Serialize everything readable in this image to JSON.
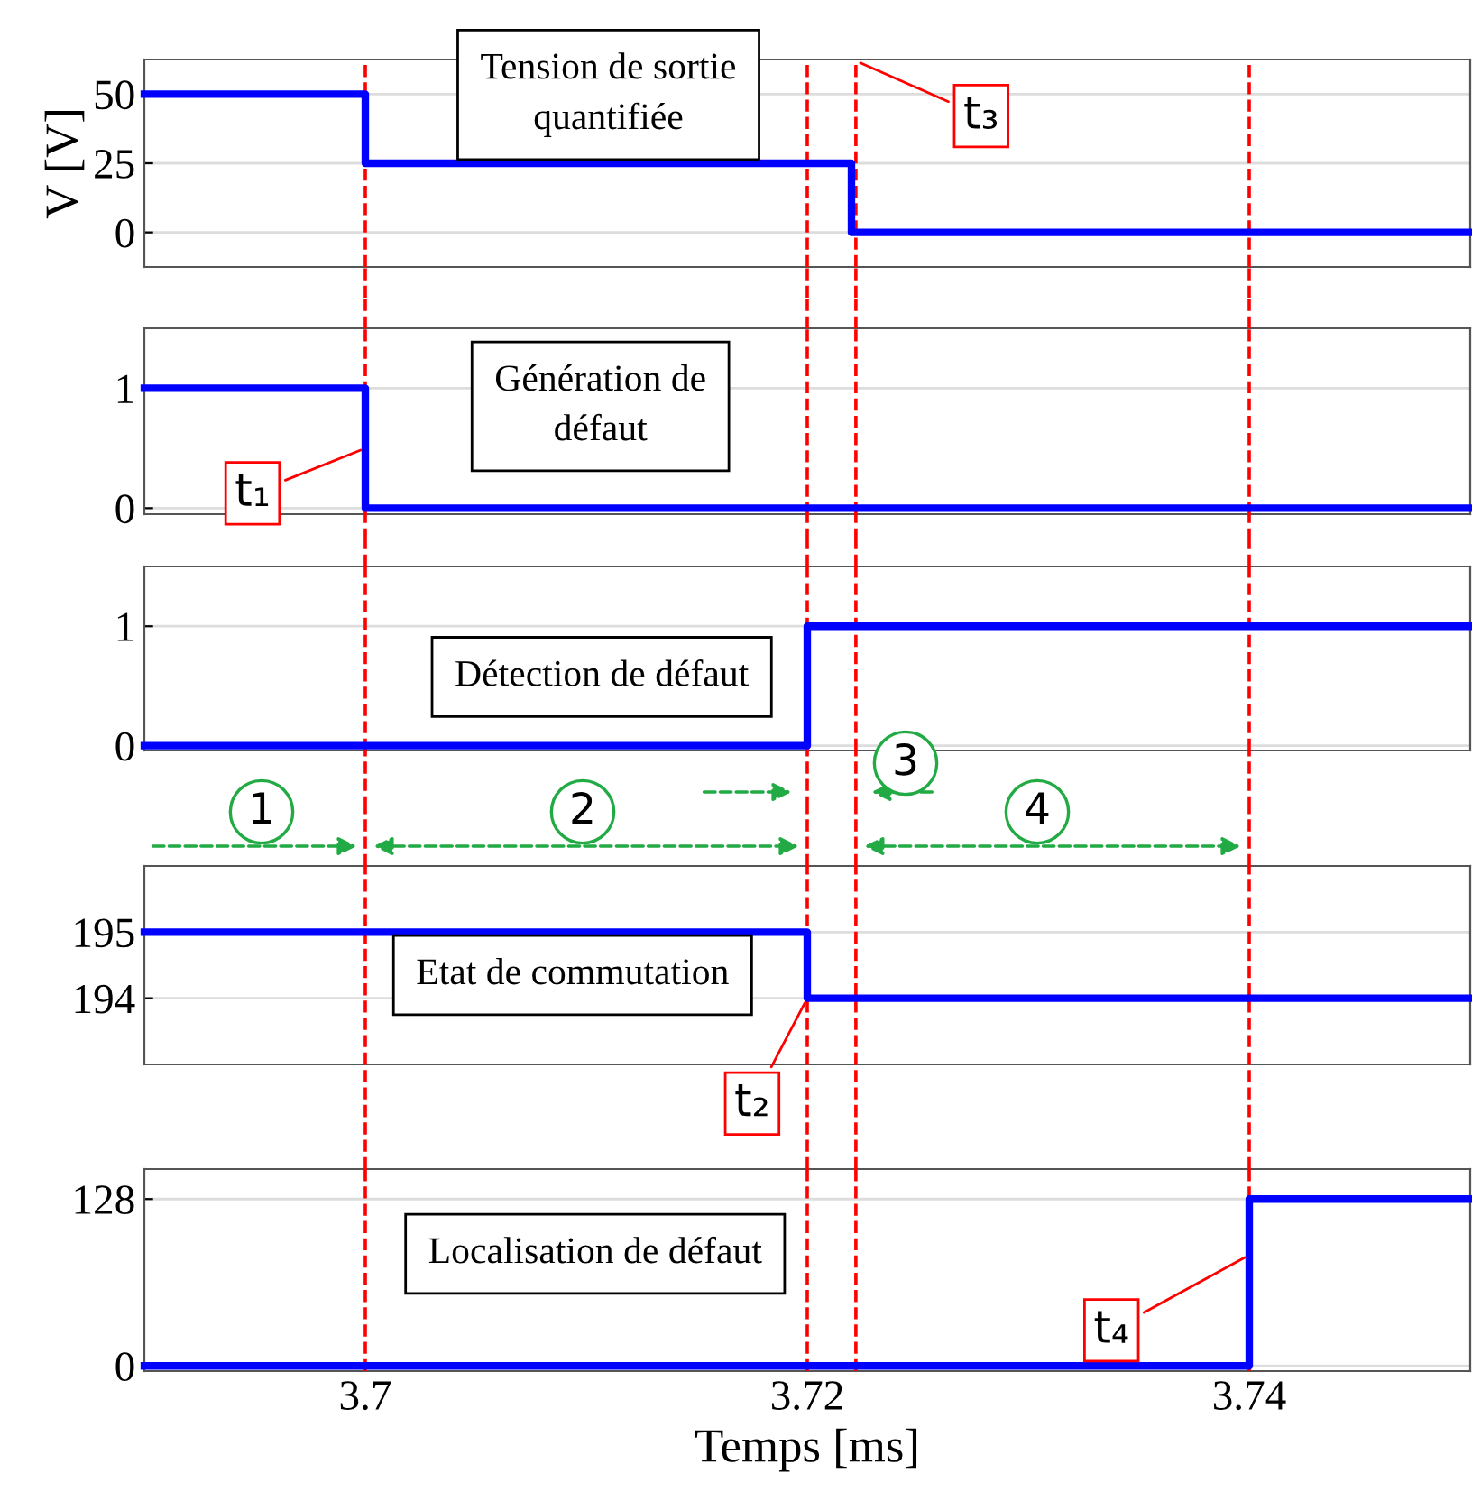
{
  "chart_data": [
    {
      "type": "step",
      "ylabel": "V [V]",
      "x": [
        3.69,
        3.7,
        3.722,
        3.75
      ],
      "series": [
        {
          "color": "#0000ff",
          "values": [
            50,
            25,
            0,
            0
          ]
        }
      ],
      "xlim": [
        3.69,
        3.75
      ],
      "ylim": [
        -12.5,
        62.5
      ],
      "yticks": [
        0,
        25,
        50
      ],
      "grid": "y",
      "tick_labels": "y",
      "ref_lines": [
        {
          "axis": "x",
          "value": 3.7,
          "color": "#ff0000",
          "line_style": "dashed"
        },
        {
          "axis": "x",
          "value": 3.72,
          "color": "#ff0000",
          "line_style": "dashed"
        },
        {
          "axis": "x",
          "value": 3.7222,
          "color": "#ff0000",
          "line_style": "dashed"
        },
        {
          "axis": "x",
          "value": 3.74,
          "color": "#ff0000",
          "line_style": "dashed"
        }
      ],
      "annotations": [
        "Tension de sortie\nquantifiée",
        {
          "text": "t₃",
          "x": 3.7222,
          "y": 62
        }
      ]
    },
    {
      "type": "step",
      "x": [
        3.69,
        3.7,
        3.75
      ],
      "series": [
        {
          "color": "#0000ff",
          "values": [
            1,
            0,
            0
          ]
        }
      ],
      "xlim": [
        3.69,
        3.75
      ],
      "ylim": [
        -0.05,
        1.5
      ],
      "yticks": [
        0,
        1
      ],
      "grid": "y",
      "tick_labels": "y",
      "ref_lines": [
        {
          "axis": "x",
          "value": 3.7,
          "color": "#ff0000",
          "line_style": "dashed"
        },
        {
          "axis": "x",
          "value": 3.72,
          "color": "#ff0000",
          "line_style": "dashed"
        },
        {
          "axis": "x",
          "value": 3.7222,
          "color": "#ff0000",
          "line_style": "dashed"
        },
        {
          "axis": "x",
          "value": 3.74,
          "color": "#ff0000",
          "line_style": "dashed"
        }
      ],
      "annotations": [
        "Génération de\ndéfaut",
        {
          "text": "t₁",
          "x": 3.7,
          "y": 0.5
        }
      ]
    },
    {
      "type": "step",
      "x": [
        3.69,
        3.72,
        3.75
      ],
      "series": [
        {
          "color": "#0000ff",
          "values": [
            0,
            1,
            1
          ]
        }
      ],
      "xlim": [
        3.69,
        3.75
      ],
      "ylim": [
        -0.04,
        1.5
      ],
      "yticks": [
        0,
        1
      ],
      "grid": "y",
      "tick_labels": "y",
      "ref_lines": [
        {
          "axis": "x",
          "value": 3.7,
          "color": "#ff0000",
          "line_style": "dashed"
        },
        {
          "axis": "x",
          "value": 3.72,
          "color": "#ff0000",
          "line_style": "dashed"
        },
        {
          "axis": "x",
          "value": 3.7222,
          "color": "#ff0000",
          "line_style": "dashed"
        },
        {
          "axis": "x",
          "value": 3.74,
          "color": "#ff0000",
          "line_style": "dashed"
        }
      ],
      "annotations": [
        "Détection de défaut",
        "1",
        "2",
        "3",
        "4"
      ]
    },
    {
      "type": "step",
      "x": [
        3.69,
        3.72,
        3.75
      ],
      "series": [
        {
          "color": "#0000ff",
          "values": [
            195,
            194,
            194
          ]
        }
      ],
      "xlim": [
        3.69,
        3.75
      ],
      "ylim": [
        193,
        196
      ],
      "yticks": [
        194,
        195
      ],
      "grid": "y",
      "tick_labels": "y",
      "ref_lines": [
        {
          "axis": "x",
          "value": 3.7,
          "color": "#ff0000",
          "line_style": "dashed"
        },
        {
          "axis": "x",
          "value": 3.72,
          "color": "#ff0000",
          "line_style": "dashed"
        },
        {
          "axis": "x",
          "value": 3.7222,
          "color": "#ff0000",
          "line_style": "dashed"
        },
        {
          "axis": "x",
          "value": 3.74,
          "color": "#ff0000",
          "line_style": "dashed"
        }
      ],
      "annotations": [
        "Etat de commutation",
        {
          "text": "t₂",
          "x": 3.72,
          "y": 194
        }
      ]
    },
    {
      "type": "step",
      "xlabel": "Temps [ms]",
      "x": [
        3.69,
        3.74,
        3.75
      ],
      "series": [
        {
          "color": "#0000ff",
          "values": [
            0,
            128,
            128
          ]
        }
      ],
      "xlim": [
        3.69,
        3.75
      ],
      "xticks": [
        3.7,
        3.72,
        3.74
      ],
      "ylim": [
        -4,
        151
      ],
      "yticks": [
        0,
        128
      ],
      "grid": "y",
      "ref_lines": [
        {
          "axis": "x",
          "value": 3.7,
          "color": "#ff0000",
          "line_style": "dashed"
        },
        {
          "axis": "x",
          "value": 3.72,
          "color": "#ff0000",
          "line_style": "dashed"
        },
        {
          "axis": "x",
          "value": 3.7222,
          "color": "#ff0000",
          "line_style": "dashed"
        },
        {
          "axis": "x",
          "value": 3.74,
          "color": "#ff0000",
          "line_style": "dashed"
        }
      ],
      "annotations": [
        "Localisation de défaut",
        {
          "text": "t₄",
          "x": 3.74,
          "y": 85
        }
      ]
    }
  ]
}
